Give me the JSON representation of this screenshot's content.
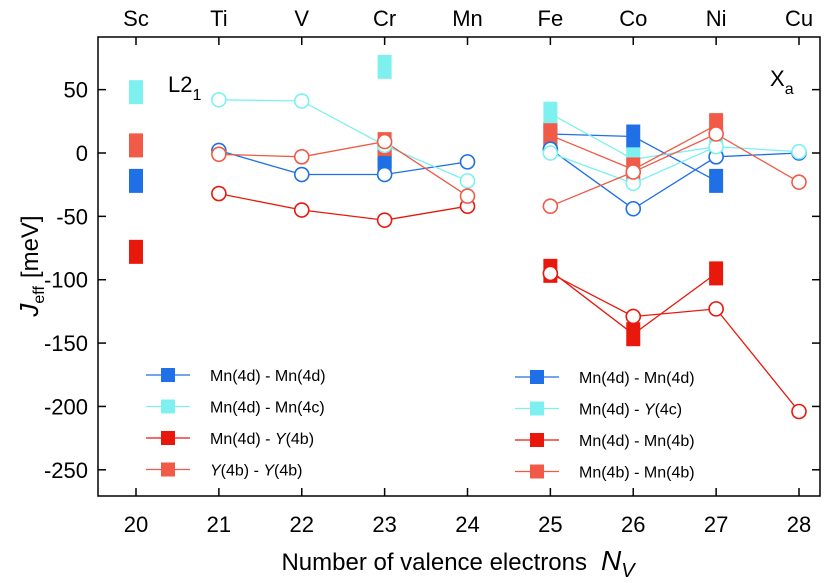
{
  "chart_data": {
    "type": "scatter",
    "xlabel": "Number of valence electrons",
    "xlabel_symbol": "N",
    "xlabel_sub": "V",
    "ylabel_symbol": "J",
    "ylabel_sub": "eff",
    "ylabel_unit": "[meV]",
    "xlim": [
      20,
      28
    ],
    "ylim": [
      -270,
      80
    ],
    "xticks": [
      20,
      21,
      22,
      23,
      24,
      25,
      26,
      27,
      28
    ],
    "yticks": [
      50,
      0,
      -50,
      -100,
      -150,
      -200,
      -250
    ],
    "ytick_labels": [
      "50",
      "0",
      "-50",
      "-100",
      "-150",
      "-200",
      "-250"
    ],
    "elements": [
      {
        "x": 20,
        "label": "Sc"
      },
      {
        "x": 21,
        "label": "Ti"
      },
      {
        "x": 22,
        "label": "V"
      },
      {
        "x": 23,
        "label": "Cr"
      },
      {
        "x": 24,
        "label": "Mn"
      },
      {
        "x": 25,
        "label": "Fe"
      },
      {
        "x": 26,
        "label": "Co"
      },
      {
        "x": 27,
        "label": "Ni"
      },
      {
        "x": 28,
        "label": "Cu"
      }
    ],
    "panel_left": {
      "text": "L2",
      "sub": "1"
    },
    "panel_right": {
      "text": "X",
      "sub": "a"
    },
    "series": [
      {
        "name": "L21 Mn(4d)-Mn(4d)",
        "color": "#1f6fe6",
        "marker": "square-filled",
        "connected": false,
        "points": [
          [
            20,
            -22
          ],
          [
            23,
            -2
          ],
          [
            23,
            -10
          ]
        ]
      },
      {
        "name": "L21 Mn(4d)-Mn(4c)",
        "color": "#7ff0f0",
        "marker": "square-filled",
        "connected": false,
        "points": [
          [
            20,
            48
          ],
          [
            23,
            68
          ]
        ]
      },
      {
        "name": "L21 Mn(4d)-Y(4b)",
        "color": "#e8180c",
        "marker": "square-filled",
        "connected": false,
        "points": [
          [
            20,
            -78
          ]
        ]
      },
      {
        "name": "L21 Y(4b)-Y(4b)",
        "color": "#f05a46",
        "marker": "square-filled",
        "connected": false,
        "points": [
          [
            20,
            6
          ],
          [
            23,
            7
          ]
        ]
      },
      {
        "name": "L21 open Mn(4d)-Mn(4d)",
        "color": "#1f6fe6",
        "marker": "circle-open",
        "connected": true,
        "points": [
          [
            21,
            2
          ],
          [
            22,
            -17
          ],
          [
            23,
            -17
          ],
          [
            24,
            -7
          ]
        ]
      },
      {
        "name": "L21 open Mn(4d)-Mn(4c)",
        "color": "#7ff0f0",
        "marker": "circle-open",
        "connected": true,
        "points": [
          [
            21,
            42
          ],
          [
            22,
            41
          ],
          [
            23,
            6
          ],
          [
            24,
            -22
          ]
        ]
      },
      {
        "name": "L21 open Mn(4d)-Y(4b)",
        "color": "#e8180c",
        "marker": "circle-open",
        "connected": true,
        "points": [
          [
            21,
            -32
          ],
          [
            22,
            -45
          ],
          [
            23,
            -53
          ],
          [
            24,
            -42
          ]
        ]
      },
      {
        "name": "L21 open Y(4b)-Y(4b)",
        "color": "#f05a46",
        "marker": "circle-open",
        "connected": true,
        "points": [
          [
            21,
            -1
          ],
          [
            22,
            -3
          ],
          [
            23,
            9
          ],
          [
            24,
            -34
          ]
        ]
      },
      {
        "name": "Xa Mn(4d)-Mn(4d)",
        "color": "#1f6fe6",
        "marker": "square-filled",
        "connected": true,
        "points": [
          [
            25,
            15
          ],
          [
            26,
            13
          ],
          [
            27,
            -22
          ]
        ]
      },
      {
        "name": "Xa Mn(4d)-Y(4c)",
        "color": "#7ff0f0",
        "marker": "square-filled",
        "connected": true,
        "points": [
          [
            25,
            31
          ],
          [
            26,
            -5
          ],
          [
            27,
            5
          ]
        ]
      },
      {
        "name": "Xa Mn(4d)-Mn(4b)",
        "color": "#e8180c",
        "marker": "square-filled",
        "connected": true,
        "points": [
          [
            25,
            -93
          ],
          [
            26,
            -143
          ],
          [
            27,
            -95
          ]
        ]
      },
      {
        "name": "Xa Mn(4b)-Mn(4b)",
        "color": "#f05a46",
        "marker": "square-filled",
        "connected": true,
        "points": [
          [
            25,
            14
          ],
          [
            26,
            -13
          ],
          [
            27,
            22
          ]
        ]
      },
      {
        "name": "Xa open Mn(4d)-Mn(4d)",
        "color": "#1f6fe6",
        "marker": "circle-open",
        "connected": true,
        "points": [
          [
            25,
            3
          ],
          [
            26,
            -44
          ],
          [
            27,
            -3
          ],
          [
            28,
            0
          ]
        ]
      },
      {
        "name": "Xa open Mn(4d)-Y(4c)",
        "color": "#7ff0f0",
        "marker": "circle-open",
        "connected": true,
        "points": [
          [
            25,
            0
          ],
          [
            26,
            -24
          ],
          [
            27,
            5
          ],
          [
            28,
            1
          ]
        ]
      },
      {
        "name": "Xa open Mn(4d)-Mn(4b)",
        "color": "#e8180c",
        "marker": "circle-open",
        "connected": true,
        "points": [
          [
            25,
            -95
          ],
          [
            26,
            -129
          ],
          [
            27,
            -123
          ],
          [
            28,
            -204
          ]
        ]
      },
      {
        "name": "Xa open Mn(4b)-Mn(4b)",
        "color": "#f05a46",
        "marker": "circle-open",
        "connected": true,
        "points": [
          [
            25,
            -42
          ],
          [
            26,
            -15
          ],
          [
            27,
            15
          ],
          [
            28,
            -23
          ]
        ]
      }
    ],
    "legend_left": [
      {
        "parts": [
          [
            "Mn(4d) - Mn(4d)",
            false
          ]
        ],
        "color": "#1f6fe6"
      },
      {
        "parts": [
          [
            "Mn(4d) - Mn(4c)",
            false
          ]
        ],
        "color": "#7ff0f0"
      },
      {
        "parts": [
          [
            "Mn(4d) - ",
            false
          ],
          [
            "Y",
            true
          ],
          [
            "(4b)",
            false
          ]
        ],
        "color": "#e8180c"
      },
      {
        "parts": [
          [
            "Y",
            true
          ],
          [
            "(4b) - ",
            false
          ],
          [
            "Y",
            true
          ],
          [
            "(4b)",
            false
          ]
        ],
        "color": "#f05a46"
      }
    ],
    "legend_right": [
      {
        "parts": [
          [
            "Mn(4d) - Mn(4d)",
            false
          ]
        ],
        "color": "#1f6fe6"
      },
      {
        "parts": [
          [
            "Mn(4d) - ",
            false
          ],
          [
            "Y",
            true
          ],
          [
            "(4c)",
            false
          ]
        ],
        "color": "#7ff0f0"
      },
      {
        "parts": [
          [
            "Mn(4d) - Mn(4b)",
            false
          ]
        ],
        "color": "#e8180c"
      },
      {
        "parts": [
          [
            "Mn(4b) - Mn(4b)",
            false
          ]
        ],
        "color": "#f05a46"
      }
    ]
  }
}
